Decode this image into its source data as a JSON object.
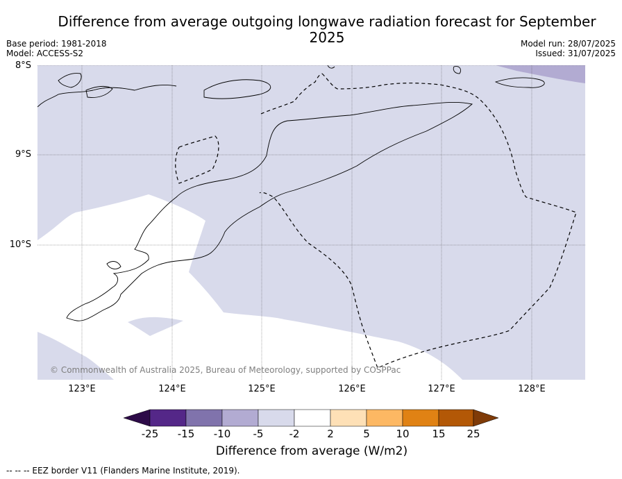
{
  "title": "Difference from average outgoing longwave radiation forecast for September 2025",
  "base_period": "Base period: 1981-2018",
  "model": "Model: ACCESS-S2",
  "model_run": "Model run: 28/07/2025",
  "issued": "Issued: 31/07/2025",
  "copyright": "© Commonwealth of Australia 2025, Bureau of Meteorology, supported by COSPPac",
  "footnote": "-- -- -- EEZ border V11 (Flanders Marine Institute, 2019).",
  "lat_labels": [
    "8°S",
    "9°S",
    "10°S"
  ],
  "lon_labels": [
    "123°E",
    "124°E",
    "125°E",
    "126°E",
    "127°E",
    "128°E"
  ],
  "colorbar": {
    "label": "Difference from average (W/m2)",
    "ticks": [
      "-25",
      "-15",
      "-10",
      "-5",
      "-2",
      "2",
      "5",
      "10",
      "15",
      "25"
    ],
    "colors": [
      "#2d0b48",
      "#542788",
      "#8073ac",
      "#b2abd2",
      "#d8daeb",
      "#ffffff",
      "#fee0b6",
      "#fdb863",
      "#e08214",
      "#b35806",
      "#7f3b08"
    ]
  }
}
